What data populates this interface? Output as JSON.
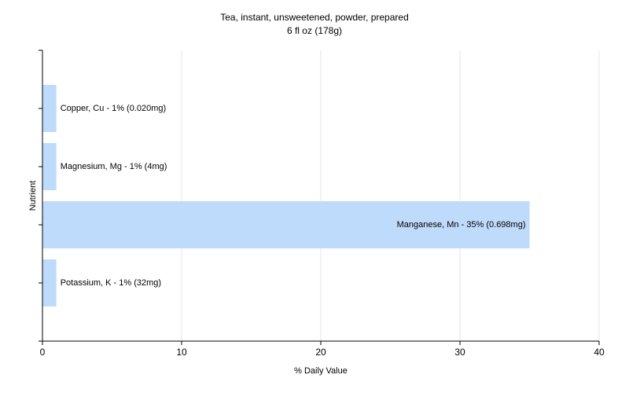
{
  "chart_data": {
    "type": "hbar",
    "title": "Tea, instant, unsweetened, powder, prepared",
    "subtitle": "6 fl oz (178g)",
    "x_label": "% Daily Value",
    "y_label": "Nutrient",
    "values": [
      1,
      1,
      35,
      1
    ],
    "value_labels": [
      "Copper, Cu - 1% (0.020mg)",
      "Magnesium, Mg - 1% (4mg)",
      "Manganese, Mn - 35% (0.698mg)",
      "Potassium, K - 1% (32mg)"
    ],
    "color": "#bfdbfb",
    "xlim": [
      0,
      40
    ],
    "xticks": [
      0,
      10,
      20,
      30,
      40
    ],
    "grid": true
  }
}
